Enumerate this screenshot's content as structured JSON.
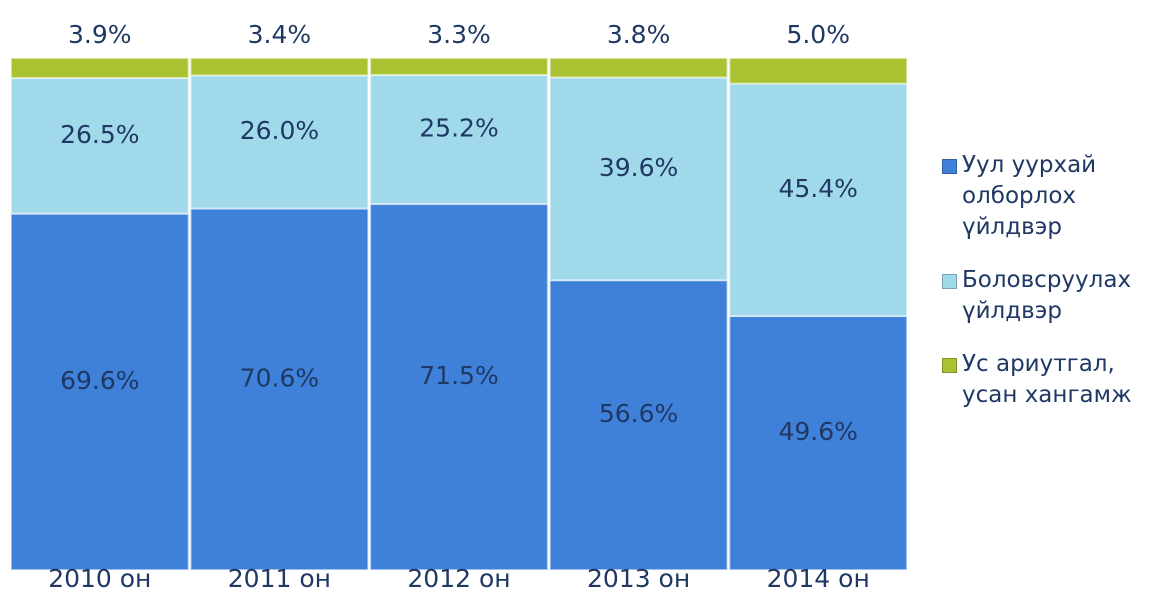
{
  "chart_data": {
    "type": "stacked_bar",
    "categories": [
      "2010 он",
      "2011 он",
      "2012 он",
      "2013 он",
      "2014 он"
    ],
    "series": [
      {
        "name": "Уул уурхай олборлох үйлдвэр",
        "color": "#3f80d8",
        "values": [
          69.6,
          70.6,
          71.5,
          56.6,
          49.6
        ],
        "value_labels": [
          "69.6%",
          "70.6%",
          "71.5%",
          "56.6%",
          "49.6%"
        ]
      },
      {
        "name": "Боловсруулах үйлдвэр",
        "color": "#a0d9ea",
        "values": [
          26.5,
          26.0,
          25.2,
          39.6,
          45.4
        ],
        "value_labels": [
          "26.5%",
          "26.0%",
          "25.2%",
          "39.6%",
          "45.4%"
        ]
      },
      {
        "name": "Ус ариутгал, усан хангамж",
        "color": "#a9c232",
        "values": [
          3.9,
          3.4,
          3.3,
          3.8,
          5.0
        ],
        "value_labels": [
          "3.9%",
          "3.4%",
          "3.3%",
          "3.8%",
          "5.0%"
        ]
      }
    ]
  }
}
